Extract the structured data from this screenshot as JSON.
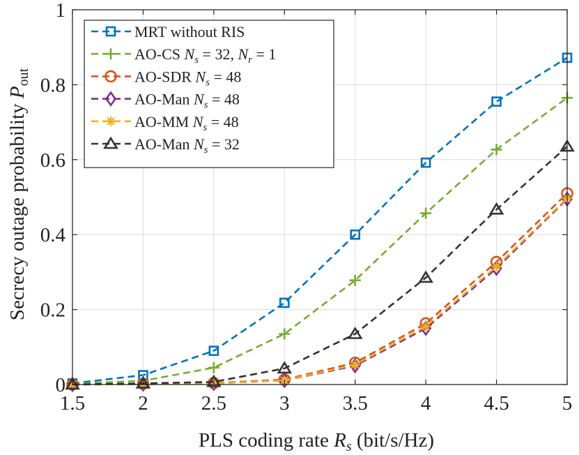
{
  "chart_data": {
    "type": "line",
    "title": "",
    "xlabel": "PLS coding rate R_s (bit/s/Hz)",
    "xlabel_parts": {
      "pre": "PLS coding rate ",
      "sym": "R",
      "sub": "s",
      "post": " (bit/s/Hz)"
    },
    "ylabel": "Secrecy outage probability P_out",
    "ylabel_parts": {
      "pre": "Secrecy outage probability ",
      "sym": "P",
      "sub": "out"
    },
    "xlim": [
      1.5,
      5
    ],
    "ylim": [
      0,
      1
    ],
    "xticks": [
      1.5,
      2,
      2.5,
      3,
      3.5,
      4,
      4.5,
      5
    ],
    "xtick_labels": [
      "1.5",
      "2",
      "2.5",
      "3",
      "3.5",
      "4",
      "4.5",
      "5"
    ],
    "yticks": [
      0,
      0.2,
      0.4,
      0.6,
      0.8,
      1
    ],
    "ytick_labels": [
      "0",
      "0.2",
      "0.4",
      "0.6",
      "0.8",
      "1"
    ],
    "grid": true,
    "legend_position": "top-left",
    "x": [
      1.5,
      2,
      2.5,
      3,
      3.5,
      4,
      4.5,
      5
    ],
    "series": [
      {
        "name": "MRT without RIS",
        "color": "#0072BD",
        "marker": "square",
        "values": [
          0.003,
          0.025,
          0.09,
          0.218,
          0.4,
          0.592,
          0.755,
          0.872
        ],
        "legend": [
          {
            "t": "MRT without RIS"
          }
        ]
      },
      {
        "name": "AO-CS N_s = 32, N_r = 1",
        "color": "#77AC30",
        "marker": "plus",
        "values": [
          0.002,
          0.01,
          0.045,
          0.135,
          0.278,
          0.457,
          0.627,
          0.765
        ],
        "legend": [
          {
            "t": "AO-CS "
          },
          {
            "i": "N"
          },
          {
            "sub": "s"
          },
          {
            "t": " = 32, "
          },
          {
            "i": "N"
          },
          {
            "sub": "r"
          },
          {
            "t": " = 1"
          }
        ]
      },
      {
        "name": "AO-SDR N_s = 48",
        "color": "#D95319",
        "marker": "circle",
        "values": [
          0.0,
          0.002,
          0.004,
          0.013,
          0.058,
          0.163,
          0.327,
          0.51
        ],
        "legend": [
          {
            "t": "AO-SDR "
          },
          {
            "i": "N"
          },
          {
            "sub": "s"
          },
          {
            "t": " = 48"
          }
        ]
      },
      {
        "name": "AO-Man N_s = 48",
        "color": "#7E2F8E",
        "marker": "diamond",
        "values": [
          0.0,
          0.001,
          0.003,
          0.011,
          0.05,
          0.15,
          0.31,
          0.495
        ],
        "legend": [
          {
            "t": "AO-Man "
          },
          {
            "i": "N"
          },
          {
            "sub": "s"
          },
          {
            "t": " = 48"
          }
        ]
      },
      {
        "name": "AO-MM N_s = 48",
        "color": "#EDB120",
        "marker": "asterisk",
        "values": [
          0.0,
          0.001,
          0.003,
          0.011,
          0.053,
          0.155,
          0.315,
          0.497
        ],
        "legend": [
          {
            "t": "AO-MM "
          },
          {
            "i": "N"
          },
          {
            "sub": "s"
          },
          {
            "t": " = 48"
          }
        ]
      },
      {
        "name": "AO-Man N_s = 32",
        "color": "#333333",
        "marker": "triangle",
        "values": [
          0.0,
          0.003,
          0.007,
          0.043,
          0.135,
          0.285,
          0.467,
          0.635
        ],
        "legend": [
          {
            "t": "AO-Man "
          },
          {
            "i": "N"
          },
          {
            "sub": "s"
          },
          {
            "t": " = 32"
          }
        ]
      }
    ]
  }
}
